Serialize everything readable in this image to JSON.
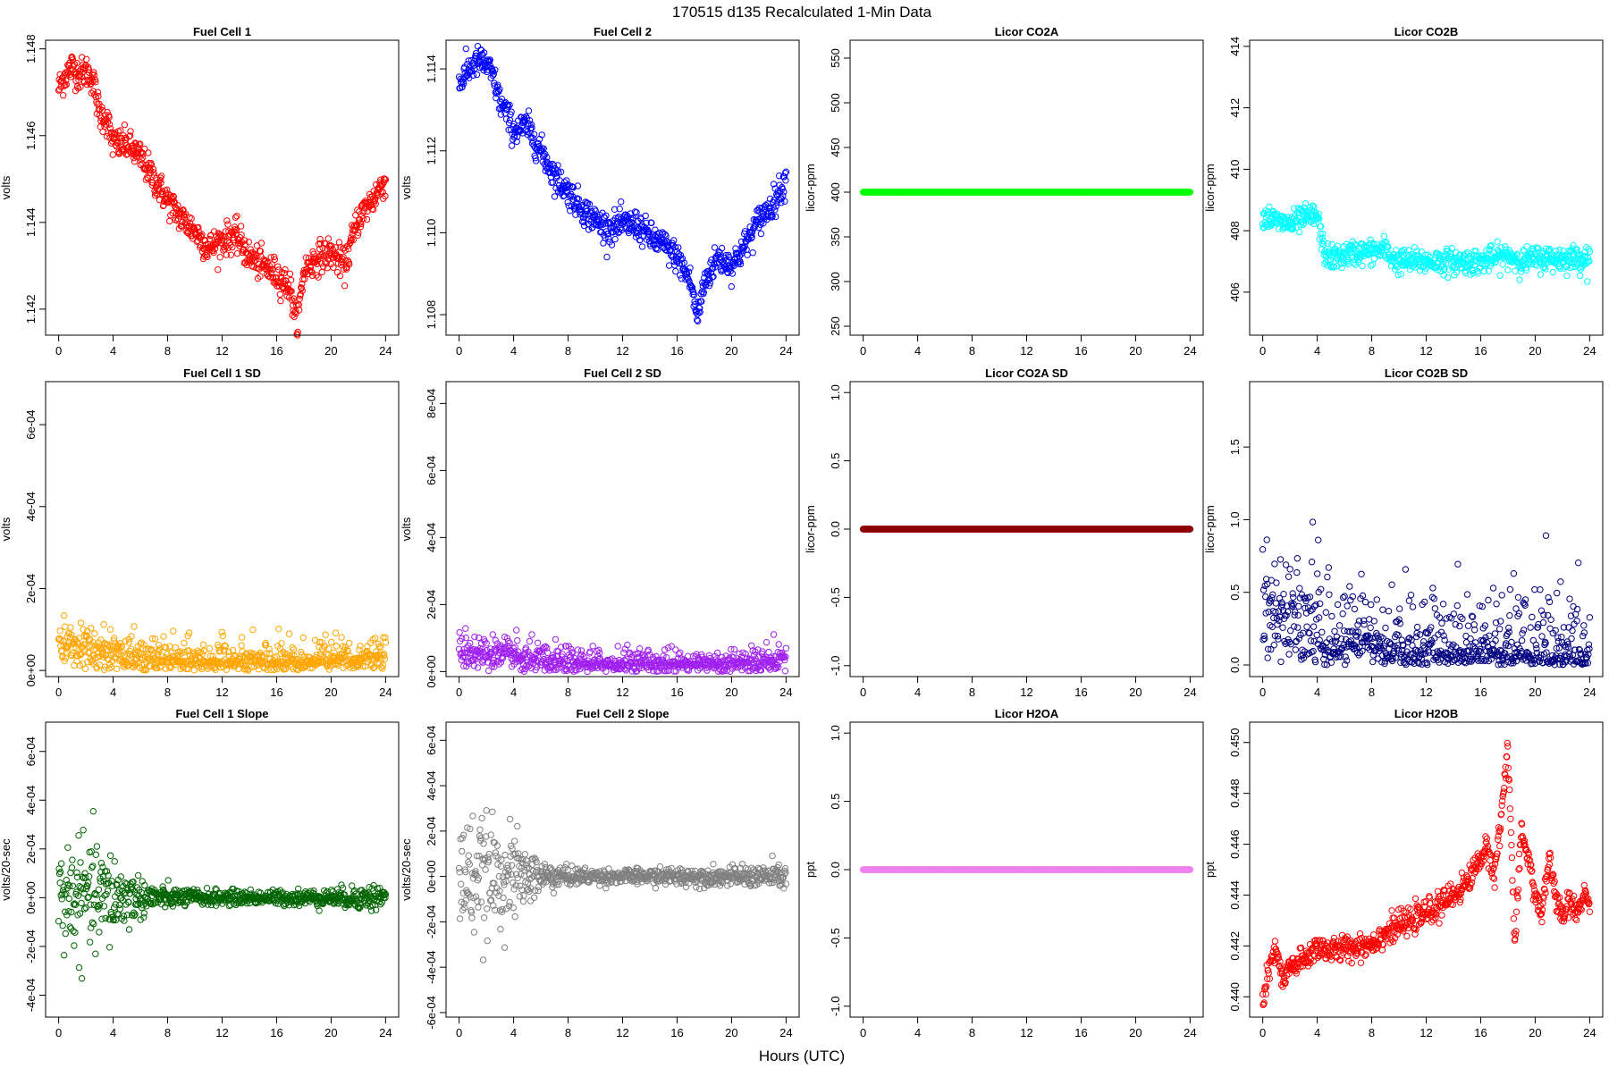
{
  "figure": {
    "title": "170515   d135   Recalculated 1-Min Data",
    "xlabel": "Hours (UTC)"
  },
  "chart_data": [
    {
      "type": "scatter",
      "title": "Fuel Cell 1",
      "xlabel": "",
      "ylabel": "volts",
      "xlim": [
        0,
        24
      ],
      "ylim": [
        1.1414,
        1.1482
      ],
      "xticks": [
        0,
        4,
        8,
        12,
        16,
        20,
        24
      ],
      "yticks": [
        1.142,
        1.144,
        1.146,
        1.148
      ],
      "yticklabels": [
        "1.142",
        "1.144",
        "1.146",
        "1.148"
      ],
      "color": "#ff0000",
      "grid": false,
      "series": [
        {
          "x": [
            0,
            0.5,
            1,
            1.5,
            2,
            2.5,
            3,
            3.5,
            4,
            5,
            6,
            7,
            8,
            9,
            10,
            11,
            12,
            13,
            14,
            15,
            16,
            17,
            17.5,
            18,
            19,
            20,
            21,
            22,
            23,
            24
          ],
          "y": [
            1.1471,
            1.1474,
            1.1476,
            1.1474,
            1.1475,
            1.1473,
            1.1465,
            1.1464,
            1.1458,
            1.1458,
            1.1455,
            1.145,
            1.1445,
            1.1441,
            1.1438,
            1.1434,
            1.1436,
            1.1437,
            1.1432,
            1.143,
            1.1428,
            1.1425,
            1.1416,
            1.1429,
            1.1432,
            1.1433,
            1.143,
            1.1441,
            1.1445,
            1.145
          ],
          "noise": 0.00018
        }
      ]
    },
    {
      "type": "scatter",
      "title": "Fuel Cell 2",
      "xlabel": "",
      "ylabel": "volts",
      "xlim": [
        0,
        24
      ],
      "ylim": [
        1.1075,
        1.1147
      ],
      "xticks": [
        0,
        4,
        8,
        12,
        16,
        20,
        24
      ],
      "yticks": [
        1.108,
        1.11,
        1.112,
        1.114
      ],
      "yticklabels": [
        "1.108",
        "1.110",
        "1.112",
        "1.114"
      ],
      "color": "#0000ff",
      "grid": false,
      "series": [
        {
          "x": [
            0,
            0.5,
            1,
            1.5,
            2,
            2.5,
            3,
            3.5,
            4,
            5,
            6,
            7,
            8,
            9,
            10,
            11,
            12,
            13,
            14,
            15,
            16,
            17,
            17.5,
            18,
            19,
            20,
            21,
            22,
            23,
            24
          ],
          "y": [
            1.1136,
            1.1139,
            1.1141,
            1.1142,
            1.1141,
            1.1138,
            1.1132,
            1.1129,
            1.1125,
            1.1126,
            1.112,
            1.1114,
            1.111,
            1.1106,
            1.1103,
            1.1101,
            1.1102,
            1.1102,
            1.1099,
            1.1097,
            1.1094,
            1.1088,
            1.1079,
            1.1088,
            1.1094,
            1.1092,
            1.1097,
            1.1103,
            1.1107,
            1.1113
          ],
          "noise": 0.00018
        }
      ]
    },
    {
      "type": "scatter",
      "title": "Licor CO2A",
      "xlabel": "",
      "ylabel": "licor-ppm",
      "xlim": [
        0,
        24
      ],
      "ylim": [
        240,
        570
      ],
      "xticks": [
        0,
        4,
        8,
        12,
        16,
        20,
        24
      ],
      "yticks": [
        250,
        300,
        350,
        400,
        450,
        500,
        550
      ],
      "yticklabels": [
        "250",
        "300",
        "350",
        "400",
        "450",
        "500",
        "550"
      ],
      "color": "#00ff00",
      "grid": false,
      "series": [
        {
          "x": [
            0,
            24
          ],
          "y": [
            400,
            400
          ],
          "noise": 0
        }
      ]
    },
    {
      "type": "scatter",
      "title": "Licor CO2B",
      "xlabel": "",
      "ylabel": "licor-ppm",
      "xlim": [
        0,
        24
      ],
      "ylim": [
        404.6,
        414.2
      ],
      "xticks": [
        0,
        4,
        8,
        12,
        16,
        20,
        24
      ],
      "yticks": [
        406,
        408,
        410,
        412,
        414
      ],
      "yticklabels": [
        "406",
        "408",
        "410",
        "412",
        "414"
      ],
      "color": "#00ffff",
      "grid": false,
      "series": [
        {
          "x": [
            0,
            1,
            2,
            3,
            4,
            4.5,
            5,
            6,
            7,
            8,
            9,
            9.5,
            10,
            12,
            14,
            16,
            17,
            18,
            19,
            20,
            21,
            22,
            23,
            24
          ],
          "y": [
            408.5,
            408.3,
            408.2,
            408.4,
            408.5,
            407.3,
            407.1,
            407.2,
            407.3,
            407.3,
            407.4,
            407.1,
            407.0,
            407.0,
            407.0,
            407.0,
            407.1,
            407.2,
            407.0,
            407.1,
            407.1,
            407.1,
            407.1,
            407.1
          ],
          "noise": 0.2
        }
      ]
    },
    {
      "type": "scatter",
      "title": "Fuel Cell 1 SD",
      "xlabel": "",
      "ylabel": "volts",
      "xlim": [
        0,
        24
      ],
      "ylim": [
        -1.5e-05,
        0.000705
      ],
      "xticks": [
        0,
        4,
        8,
        12,
        16,
        20,
        24
      ],
      "yticks": [
        0,
        0.0002,
        0.0004,
        0.0006
      ],
      "yticklabels": [
        "0e+00",
        "2e-04",
        "4e-04",
        "6e-04"
      ],
      "color": "#ffa500",
      "grid": false,
      "series": [
        {
          "x": [
            0,
            1,
            2,
            3,
            4,
            5,
            6,
            8,
            12,
            16,
            20,
            22,
            24
          ],
          "y": [
            6e-05,
            5e-05,
            5e-05,
            4e-05,
            4e-05,
            3e-05,
            2e-05,
            1.5e-05,
            1.2e-05,
            1.2e-05,
            1.2e-05,
            1.8e-05,
            2.5e-05
          ],
          "noise": 3e-05
        }
      ]
    },
    {
      "type": "scatter",
      "title": "Fuel Cell 2 SD",
      "xlabel": "",
      "ylabel": "volts",
      "xlim": [
        0,
        24
      ],
      "ylim": [
        -1.5e-05,
        0.000865
      ],
      "xticks": [
        0,
        4,
        8,
        12,
        16,
        20,
        24
      ],
      "yticks": [
        0,
        0.0002,
        0.0004,
        0.0006,
        0.0008
      ],
      "yticklabels": [
        "0e+00",
        "2e-04",
        "4e-04",
        "6e-04",
        "8e-04"
      ],
      "color": "#a020f0",
      "grid": false,
      "series": [
        {
          "x": [
            0,
            1,
            2,
            3,
            4,
            5,
            6,
            8,
            12,
            16,
            20,
            22,
            24
          ],
          "y": [
            7e-05,
            6e-05,
            5e-05,
            4e-05,
            4e-05,
            3e-05,
            2e-05,
            1.5e-05,
            1.2e-05,
            1.2e-05,
            1.5e-05,
            2e-05,
            3e-05
          ],
          "noise": 3e-05
        }
      ]
    },
    {
      "type": "scatter",
      "title": "Licor CO2A SD",
      "xlabel": "",
      "ylabel": "licor-ppm",
      "xlim": [
        0,
        24
      ],
      "ylim": [
        -1.08,
        1.08
      ],
      "xticks": [
        0,
        4,
        8,
        12,
        16,
        20,
        24
      ],
      "yticks": [
        -1.0,
        -0.5,
        0.0,
        0.5,
        1.0
      ],
      "yticklabels": [
        "-1.0",
        "-0.5",
        "0.0",
        "0.5",
        "1.0"
      ],
      "color": "#8b0000",
      "grid": false,
      "series": [
        {
          "x": [
            0,
            24
          ],
          "y": [
            0,
            0
          ],
          "noise": 0
        }
      ]
    },
    {
      "type": "scatter",
      "title": "Licor CO2B SD",
      "xlabel": "",
      "ylabel": "licor-ppm",
      "xlim": [
        0,
        24
      ],
      "ylim": [
        -0.08,
        1.95
      ],
      "xticks": [
        0,
        4,
        8,
        12,
        16,
        20,
        24
      ],
      "yticks": [
        0.0,
        0.5,
        1.0,
        1.5
      ],
      "yticklabels": [
        "0.0",
        "0.5",
        "1.0",
        "1.5"
      ],
      "color": "#000080",
      "grid": false,
      "series": [
        {
          "x": [
            0,
            1,
            2,
            3,
            4,
            4.5,
            5,
            6,
            7,
            8,
            9,
            10,
            12,
            16,
            20,
            24
          ],
          "y": [
            0.35,
            0.3,
            0.3,
            0.3,
            0.3,
            0.05,
            0.05,
            0.08,
            0.08,
            0.08,
            0.05,
            0.0,
            0.0,
            0.02,
            0.0,
            0.0
          ],
          "noise": 0.25
        }
      ]
    },
    {
      "type": "scatter",
      "title": "Fuel Cell 1 Slope",
      "xlabel": "",
      "ylabel": "volts/20-sec",
      "xlim": [
        0,
        24
      ],
      "ylim": [
        -0.00049,
        0.00072
      ],
      "xticks": [
        0,
        4,
        8,
        12,
        16,
        20,
        24
      ],
      "yticks": [
        -0.0004,
        -0.0002,
        0,
        0.0002,
        0.0004,
        0.0006
      ],
      "yticklabels": [
        "-4e-04",
        "-2e-04",
        "0e+00",
        "2e-04",
        "4e-04",
        "6e-04"
      ],
      "color": "#006400",
      "grid": false,
      "series": [
        {
          "x": [
            0,
            2,
            4,
            5,
            6,
            8,
            12,
            16,
            20,
            24
          ],
          "y": [
            0,
            0,
            0,
            0,
            0,
            0,
            0,
            0,
            0,
            0
          ],
          "spread": [
            0.00012,
            0.00011,
            0.0001,
            6e-05,
            4e-05,
            2e-05,
            1.5e-05,
            1.5e-05,
            1.8e-05,
            3e-05
          ]
        }
      ]
    },
    {
      "type": "scatter",
      "title": "Fuel Cell 2 Slope",
      "xlabel": "",
      "ylabel": "volts/20-sec",
      "xlim": [
        0,
        24
      ],
      "ylim": [
        -0.00062,
        0.00068
      ],
      "xticks": [
        0,
        4,
        8,
        12,
        16,
        20,
        24
      ],
      "yticks": [
        -0.0006,
        -0.0004,
        -0.0002,
        0,
        0.0002,
        0.0004,
        0.0006
      ],
      "yticklabels": [
        "-6e-04",
        "-4e-04",
        "-2e-04",
        "0e+00",
        "2e-04",
        "4e-04",
        "6e-04"
      ],
      "color": "#808080",
      "grid": false,
      "series": [
        {
          "x": [
            0,
            2,
            4,
            5,
            6,
            8,
            12,
            16,
            20,
            24
          ],
          "y": [
            0,
            0,
            0,
            0,
            0,
            0,
            0,
            0,
            0,
            0
          ],
          "spread": [
            0.00013,
            0.00012,
            0.0001,
            6e-05,
            4e-05,
            2e-05,
            1.5e-05,
            2e-05,
            2e-05,
            3e-05
          ]
        }
      ]
    },
    {
      "type": "scatter",
      "title": "Licor H2OA",
      "xlabel": "",
      "ylabel": "ppt",
      "xlim": [
        0,
        24
      ],
      "ylim": [
        -1.08,
        1.08
      ],
      "xticks": [
        0,
        4,
        8,
        12,
        16,
        20,
        24
      ],
      "yticks": [
        -1.0,
        -0.5,
        0.0,
        0.5,
        1.0
      ],
      "yticklabels": [
        "-1.0",
        "-0.5",
        "0.0",
        "0.5",
        "1.0"
      ],
      "color": "#ee82ee",
      "grid": false,
      "series": [
        {
          "x": [
            0,
            24
          ],
          "y": [
            0,
            0
          ],
          "noise": 0
        }
      ]
    },
    {
      "type": "scatter",
      "title": "Licor H2OB",
      "xlabel": "",
      "ylabel": "ppt",
      "xlim": [
        0,
        24
      ],
      "ylim": [
        0.4392,
        0.4508
      ],
      "xticks": [
        0,
        4,
        8,
        12,
        16,
        20,
        24
      ],
      "yticks": [
        0.44,
        0.442,
        0.444,
        0.446,
        0.448,
        0.45
      ],
      "yticklabels": [
        "0.440",
        "0.442",
        "0.444",
        "0.446",
        "0.448",
        "0.450"
      ],
      "color": "#ff0000",
      "grid": false,
      "series": [
        {
          "x": [
            0,
            0.5,
            1,
            1.5,
            2,
            3,
            4,
            5,
            6,
            7,
            8,
            9,
            10,
            11,
            12,
            13,
            14,
            15,
            16,
            16.5,
            17,
            17.5,
            18,
            18.5,
            19,
            19.5,
            20,
            20.5,
            21,
            21.5,
            22,
            22.5,
            23,
            23.5,
            24
          ],
          "y": [
            0.4397,
            0.4412,
            0.4418,
            0.4405,
            0.4412,
            0.4414,
            0.442,
            0.4418,
            0.4419,
            0.442,
            0.4421,
            0.4425,
            0.4428,
            0.443,
            0.4433,
            0.4436,
            0.444,
            0.4445,
            0.4455,
            0.4458,
            0.4448,
            0.447,
            0.45,
            0.442,
            0.4465,
            0.4455,
            0.444,
            0.4432,
            0.4455,
            0.444,
            0.443,
            0.4438,
            0.4432,
            0.444,
            0.4438
          ],
          "noise": 0.00025
        }
      ]
    }
  ]
}
